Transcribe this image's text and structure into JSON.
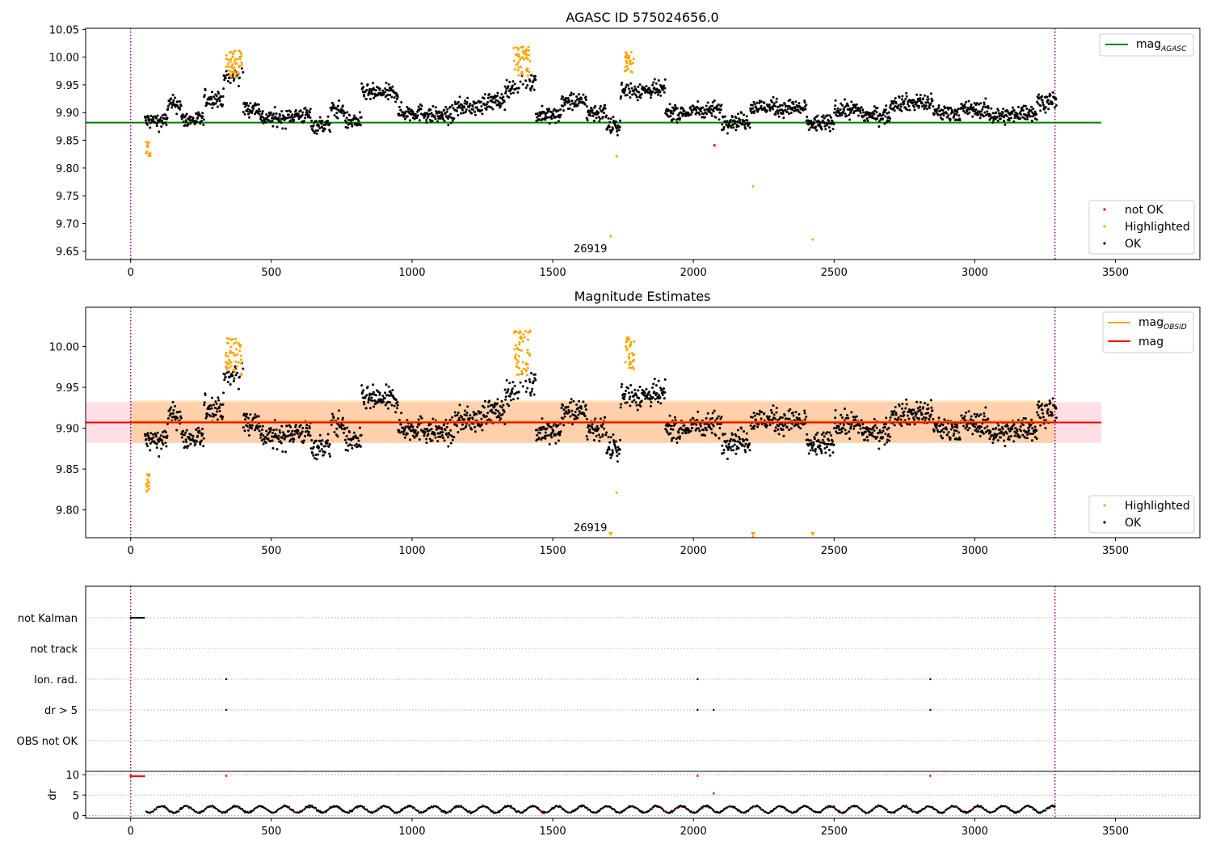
{
  "chart_data": [
    {
      "type": "scatter",
      "title": "AGASC ID 575024656.0",
      "xlim": [
        -160,
        3800
      ],
      "ylim": [
        9.635,
        10.052
      ],
      "xticks": [
        0,
        500,
        1000,
        1500,
        2000,
        2500,
        3000,
        3500
      ],
      "yticks": [
        9.65,
        9.7,
        9.75,
        9.8,
        9.85,
        9.9,
        9.95,
        10.0,
        10.05
      ],
      "xtick_labels": [
        "0",
        "500",
        "1000",
        "1500",
        "2000",
        "2500",
        "3000",
        "3500"
      ],
      "ytick_labels": [
        "9.65",
        "9.70",
        "9.75",
        "9.80",
        "9.85",
        "9.90",
        "9.95",
        "10.00",
        "10.05"
      ],
      "vlines": [
        0,
        3285
      ],
      "annotation": {
        "text": "26919",
        "x": 1640,
        "y": 9.655
      },
      "mag_agasc": 9.882,
      "legend_top": [
        {
          "label": "mag",
          "sub": "AGASC",
          "color": "#008000"
        }
      ],
      "legend_bottom": [
        {
          "label": "not OK",
          "color": "#ff0000"
        },
        {
          "label": "Highlighted",
          "color": "#ffa500"
        },
        {
          "label": "OK",
          "color": "#000000"
        }
      ],
      "series": [
        {
          "name": "not OK",
          "points": [
            [
              2075,
              9.841
            ]
          ]
        },
        {
          "name": "Highlighted",
          "clusters": [
            {
              "x": [
                55,
                70
              ],
              "y": [
                9.822,
                9.848
              ]
            },
            {
              "x": [
                338,
                395
              ],
              "y": [
                9.965,
                10.012
              ]
            },
            {
              "x": [
                1360,
                1420
              ],
              "y": [
                9.965,
                10.02
              ]
            },
            {
              "x": [
                1755,
                1790
              ],
              "y": [
                9.972,
                10.012
              ]
            }
          ],
          "singles": [
            [
              1706,
              9.677
            ],
            [
              1727,
              9.821
            ],
            [
              2212,
              9.767
            ],
            [
              2424,
              9.671
            ]
          ]
        },
        {
          "name": "OK",
          "x_range": [
            50,
            3290
          ],
          "typical_range": [
            9.845,
            9.965
          ]
        }
      ]
    },
    {
      "type": "scatter",
      "title": "Magnitude Estimates",
      "xlim": [
        -160,
        3800
      ],
      "ylim": [
        9.766,
        10.048
      ],
      "xticks": [
        0,
        500,
        1000,
        1500,
        2000,
        2500,
        3000,
        3500
      ],
      "yticks": [
        9.8,
        9.85,
        9.9,
        9.95,
        10.0
      ],
      "xtick_labels": [
        "0",
        "500",
        "1000",
        "1500",
        "2000",
        "2500",
        "3000",
        "3500"
      ],
      "ytick_labels": [
        "9.80",
        "9.85",
        "9.90",
        "9.95",
        "10.00"
      ],
      "vlines": [
        0,
        3285
      ],
      "annotation": {
        "text": "26919",
        "x": 1640,
        "y": 9.776
      },
      "mag": 9.907,
      "mag_band": [
        9.882,
        9.932
      ],
      "mag_obsid": 9.908,
      "mag_obsid_band": [
        9.882,
        9.934
      ],
      "legend_top": [
        {
          "label": "mag",
          "sub": "OBSID",
          "color": "#ffa500"
        },
        {
          "label": "mag",
          "sub": "",
          "color": "#ff0000"
        }
      ],
      "legend_bottom": [
        {
          "label": "Highlighted",
          "color": "#ffa500"
        },
        {
          "label": "OK",
          "color": "#000000"
        }
      ],
      "offscale_markers_x": [
        1706,
        2212,
        2424
      ]
    },
    {
      "type": "scatter",
      "title": "",
      "xlim": [
        -160,
        3800
      ],
      "xticks": [
        0,
        500,
        1000,
        1500,
        2000,
        2500,
        3000,
        3500
      ],
      "xtick_labels": [
        "0",
        "500",
        "1000",
        "1500",
        "2000",
        "2500",
        "3000",
        "3500"
      ],
      "flag_labels": [
        "not Kalman",
        "not track",
        "Ion. rad.",
        "dr > 5",
        "OBS not OK"
      ],
      "flag_events": {
        "not Kalman": {
          "x_range": [
            0,
            50
          ]
        },
        "not track": {
          "x": []
        },
        "Ion. rad.": {
          "x": [
            340,
            2015,
            2842
          ]
        },
        "dr > 5": {
          "x": [
            340,
            2015,
            2072,
            2842
          ]
        },
        "OBS not OK": {
          "x": []
        }
      },
      "dr": {
        "ylabel": "dr",
        "yticks": [
          0,
          5,
          10
        ],
        "ytick_labels": [
          "0",
          "5",
          "10"
        ],
        "ylim": [
          -0.7,
          10.8
        ],
        "typical_range": [
          0.3,
          3.0
        ],
        "spikes": [
          [
            0,
            10
          ],
          [
            340,
            10
          ],
          [
            2015,
            10
          ],
          [
            2072,
            5.7
          ],
          [
            2842,
            10
          ]
        ]
      }
    }
  ]
}
